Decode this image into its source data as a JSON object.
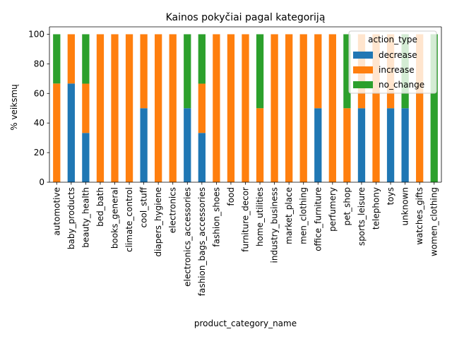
{
  "chart_data": {
    "type": "bar",
    "stacked": true,
    "title": "Kainos pokyčiai pagal kategoriją",
    "xlabel": "product_category_name",
    "ylabel": "% veiksmų",
    "ylim": [
      0,
      105
    ],
    "yticks": [
      0,
      20,
      40,
      60,
      80,
      100
    ],
    "grid": false,
    "legend": {
      "title": "action_type",
      "position": "top-right"
    },
    "categories": [
      "automotive",
      "baby_products",
      "beauty_health",
      "bed_bath",
      "books_general",
      "climate_control",
      "cool_stuff",
      "diapers_hygiene",
      "electronics",
      "electronics_accessories",
      "fashion_bags_accessories",
      "fashion_shoes",
      "food",
      "furniture_decor",
      "home_utilities",
      "industry_business",
      "market_place",
      "men_clothing",
      "office_furniture",
      "perfumery",
      "pet_shop",
      "sports_leisure",
      "telephony",
      "toys",
      "unknown",
      "watches_gifts",
      "women_clothing"
    ],
    "series": [
      {
        "name": "decrease",
        "color": "#1f77b4",
        "values": [
          0,
          66.7,
          33.3,
          0,
          0,
          0,
          50,
          0,
          0,
          50,
          33.3,
          0,
          0,
          0,
          0,
          0,
          0,
          0,
          50,
          0,
          0,
          50,
          0,
          50,
          50,
          0,
          0
        ]
      },
      {
        "name": "increase",
        "color": "#ff7f0e",
        "values": [
          66.7,
          33.3,
          33.3,
          100,
          100,
          100,
          50,
          100,
          100,
          0,
          33.3,
          100,
          100,
          100,
          50,
          100,
          100,
          100,
          50,
          100,
          50,
          50,
          100,
          50,
          0,
          100,
          0
        ]
      },
      {
        "name": "no_change",
        "color": "#2ca02c",
        "values": [
          33.3,
          0,
          33.4,
          0,
          0,
          0,
          0,
          0,
          0,
          50,
          33.4,
          0,
          0,
          0,
          50,
          0,
          0,
          0,
          0,
          0,
          50,
          0,
          0,
          0,
          50,
          0,
          100
        ]
      }
    ]
  }
}
